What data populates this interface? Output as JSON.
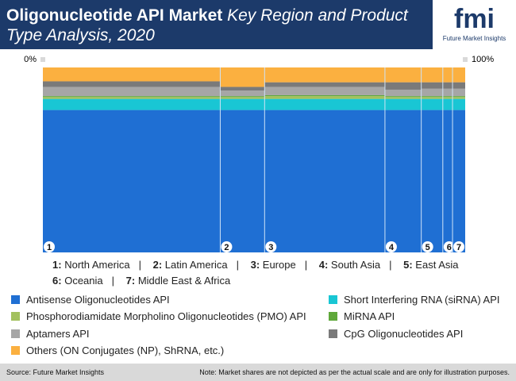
{
  "header": {
    "title_bold": "Oligonucleotide API Market",
    "title_italic": "Key Region and Product Type Analysis, 2020",
    "logo": "fmi",
    "logo_sub": "Future Market Insights"
  },
  "chart_data": {
    "type": "marimekko",
    "categories": [
      "North America",
      "Latin America",
      "Europe",
      "South Asia",
      "East Asia",
      "Oceania",
      "Middle East & Africa"
    ],
    "markers": [
      "1",
      "2",
      "3",
      "4",
      "5",
      "6",
      "7"
    ],
    "widths": [
      42,
      10.5,
      28.5,
      8.6,
      5.1,
      2.3,
      3.0
    ],
    "xlim": [
      0,
      100
    ],
    "xticks": [
      {
        "value": 0,
        "label": "0%"
      },
      {
        "value": 100,
        "label": "100%"
      }
    ],
    "ylim": [
      0,
      100
    ],
    "series": [
      {
        "name": "Antisense Oligonucleotides API",
        "color": "#1f6fd3",
        "values": [
          77,
          77,
          77,
          77,
          77,
          77,
          77
        ]
      },
      {
        "name": "Short Interfering RNA (siRNA) API",
        "color": "#19c6d4",
        "values": [
          6,
          6,
          6,
          6,
          6,
          6,
          6
        ]
      },
      {
        "name": "Phosphorodiamidate Morpholino Oligonucleotides (PMO) API",
        "color": "#a3c15e",
        "values": [
          1,
          1,
          1.5,
          1,
          1,
          1,
          1
        ]
      },
      {
        "name": "MiRNA API",
        "color": "#5fa83a",
        "values": [
          0.5,
          0.5,
          0.5,
          0.5,
          0.5,
          0.5,
          0.5
        ]
      },
      {
        "name": "Aptamers API",
        "color": "#a6a6a6",
        "values": [
          5,
          3,
          4.5,
          3.5,
          4,
          4,
          4
        ]
      },
      {
        "name": "CpG Oligonucleotides API",
        "color": "#7a7a7a",
        "values": [
          3,
          2,
          2.5,
          4,
          3.5,
          3.5,
          3.5
        ]
      },
      {
        "name": "Others (ON Conjugates (NP), ShRNA, etc.)",
        "color": "#fbb040",
        "values": [
          7.5,
          10.5,
          8,
          8,
          8,
          8,
          8
        ]
      }
    ]
  },
  "footer": {
    "source": "Source: Future Market Insights",
    "note": "Note: Market shares are not depicted as per the actual scale and are only for illustration purposes."
  }
}
